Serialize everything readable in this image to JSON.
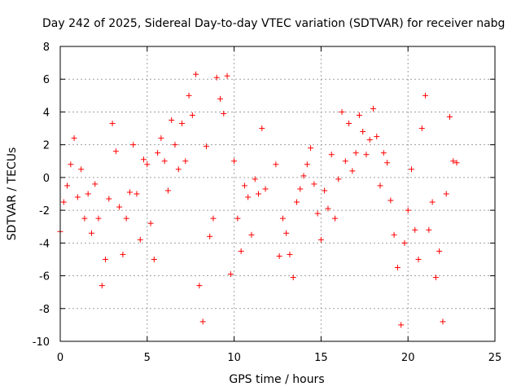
{
  "chart_data": {
    "type": "scatter",
    "title": "Day 242 of 2025, Sidereal Day-to-day VTEC variation (SDTVAR) for receiver nabg",
    "xlabel": "GPS time / hours",
    "ylabel": "SDTVAR / TECUs",
    "xlim": [
      0,
      25
    ],
    "ylim": [
      -10,
      8
    ],
    "xticks": [
      0,
      5,
      10,
      15,
      20,
      25
    ],
    "yticks": [
      -10,
      -8,
      -6,
      -4,
      -2,
      0,
      2,
      4,
      6,
      8
    ],
    "grid": true,
    "marker": "+",
    "color": "#ff0000",
    "series": [
      {
        "name": "SDTVAR",
        "x": [
          0.0,
          0.2,
          0.4,
          0.6,
          0.8,
          1.0,
          1.2,
          1.4,
          1.6,
          1.8,
          2.0,
          2.2,
          2.4,
          2.6,
          2.8,
          3.0,
          3.2,
          3.4,
          3.6,
          3.8,
          4.0,
          4.2,
          4.4,
          4.6,
          4.8,
          5.0,
          5.2,
          5.4,
          5.6,
          5.8,
          6.0,
          6.2,
          6.4,
          6.6,
          6.8,
          7.0,
          7.2,
          7.4,
          7.6,
          7.8,
          8.0,
          8.2,
          8.4,
          8.6,
          8.8,
          9.0,
          9.2,
          9.4,
          9.6,
          9.8,
          10.0,
          10.2,
          10.4,
          10.6,
          10.8,
          11.0,
          11.2,
          11.4,
          11.6,
          11.8,
          12.4,
          12.6,
          12.8,
          13.0,
          13.2,
          13.4,
          13.6,
          13.8,
          14.0,
          14.2,
          14.4,
          14.6,
          14.8,
          15.0,
          15.2,
          15.4,
          15.6,
          15.8,
          16.0,
          16.2,
          16.4,
          16.6,
          16.8,
          17.0,
          17.2,
          17.4,
          17.6,
          17.8,
          18.0,
          18.2,
          18.4,
          18.6,
          18.8,
          19.0,
          19.2,
          19.4,
          19.6,
          19.8,
          20.0,
          20.2,
          20.4,
          20.6,
          20.8,
          21.0,
          21.2,
          21.4,
          21.6,
          21.8,
          22.0,
          22.2,
          22.4,
          22.6,
          22.8
        ],
        "y": [
          -3.3,
          -1.5,
          -0.5,
          0.8,
          2.4,
          -1.2,
          0.5,
          -2.5,
          -1.0,
          -3.4,
          -0.4,
          -2.5,
          -6.6,
          -5.0,
          -1.3,
          3.3,
          1.6,
          -1.8,
          -4.7,
          -2.5,
          -0.9,
          2.0,
          -1.0,
          -3.8,
          1.1,
          0.8,
          -2.8,
          -5.0,
          1.5,
          2.4,
          1.0,
          -0.8,
          3.5,
          2.0,
          0.5,
          3.3,
          1.0,
          5.0,
          3.8,
          6.3,
          -6.6,
          -8.8,
          1.9,
          -3.6,
          -2.5,
          6.1,
          4.8,
          3.9,
          6.2,
          -5.9,
          1.0,
          -2.5,
          -4.5,
          -0.5,
          -1.2,
          -3.5,
          -0.1,
          -1.0,
          3.0,
          -0.7,
          0.8,
          -4.8,
          -2.5,
          -3.4,
          -4.7,
          -6.1,
          -1.5,
          -0.7,
          0.1,
          0.8,
          1.8,
          -0.4,
          -2.2,
          -3.8,
          -0.8,
          -1.9,
          1.4,
          -2.5,
          -0.1,
          4.0,
          1.0,
          3.3,
          0.4,
          1.5,
          3.8,
          2.8,
          1.4,
          2.3,
          4.2,
          2.5,
          -0.5,
          1.5,
          0.9,
          -1.4,
          -3.5,
          -5.5,
          -9.0,
          -4.0,
          -2.0,
          0.5,
          -3.2,
          -5.0,
          3.0,
          5.0,
          -3.2,
          -1.5,
          -6.1,
          -4.5,
          -8.8,
          -1.0,
          3.7,
          1.0,
          0.9
        ]
      }
    ]
  }
}
